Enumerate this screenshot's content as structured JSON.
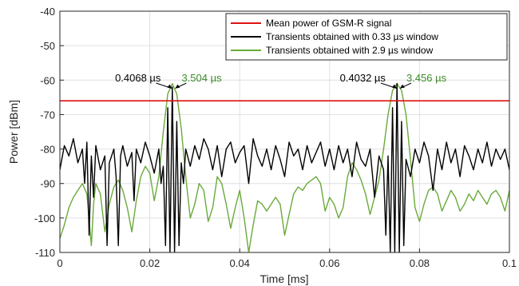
{
  "chart_data": {
    "type": "line",
    "title": "",
    "xlabel": "Time [ms]",
    "ylabel": "Power [dBm]",
    "xlim": [
      0,
      0.1
    ],
    "ylim": [
      -110,
      -40
    ],
    "xticks": [
      0,
      0.02,
      0.04,
      0.06,
      0.08,
      0.1
    ],
    "xtick_labels": [
      "0",
      "0.02",
      "0.04",
      "0.06",
      "0.08",
      "0.1"
    ],
    "yticks": [
      -110,
      -100,
      -90,
      -80,
      -70,
      -60,
      -50,
      -40
    ],
    "ytick_labels": [
      "-110",
      "-100",
      "-90",
      "-80",
      "-70",
      "-60",
      "-50",
      "-40"
    ],
    "grid": true,
    "legend_position": "top-right",
    "series": [
      {
        "name": "Mean power of GSM-R signal",
        "color": "#e01010",
        "x": [
          0,
          0.1
        ],
        "y": [
          -66,
          -66
        ]
      },
      {
        "name": "Transients obtained with 0.33 µs window",
        "color": "#000000",
        "x": [
          0,
          0.001,
          0.002,
          0.003,
          0.004,
          0.005,
          0.0055,
          0.006,
          0.0065,
          0.007,
          0.0075,
          0.008,
          0.009,
          0.01,
          0.0105,
          0.011,
          0.012,
          0.0125,
          0.013,
          0.0135,
          0.014,
          0.015,
          0.016,
          0.0165,
          0.017,
          0.018,
          0.019,
          0.02,
          0.021,
          0.022,
          0.0225,
          0.023,
          0.0235,
          0.024,
          0.0245,
          0.025,
          0.0255,
          0.026,
          0.0265,
          0.027,
          0.0275,
          0.028,
          0.029,
          0.03,
          0.031,
          0.032,
          0.033,
          0.034,
          0.035,
          0.036,
          0.037,
          0.038,
          0.039,
          0.04,
          0.041,
          0.042,
          0.043,
          0.044,
          0.045,
          0.046,
          0.047,
          0.048,
          0.049,
          0.05,
          0.051,
          0.052,
          0.053,
          0.054,
          0.055,
          0.056,
          0.057,
          0.058,
          0.059,
          0.06,
          0.061,
          0.062,
          0.063,
          0.064,
          0.065,
          0.066,
          0.067,
          0.068,
          0.069,
          0.07,
          0.071,
          0.072,
          0.0725,
          0.073,
          0.0735,
          0.074,
          0.0745,
          0.075,
          0.0755,
          0.076,
          0.0765,
          0.077,
          0.078,
          0.079,
          0.08,
          0.081,
          0.082,
          0.083,
          0.084,
          0.085,
          0.086,
          0.087,
          0.088,
          0.089,
          0.09,
          0.091,
          0.092,
          0.093,
          0.094,
          0.095,
          0.096,
          0.097,
          0.098,
          0.099,
          0.1
        ],
        "y": [
          -86,
          -79,
          -82,
          -77,
          -84,
          -80,
          -90,
          -78,
          -105,
          -82,
          -94,
          -79,
          -86,
          -82,
          -108,
          -84,
          -80,
          -88,
          -108,
          -82,
          -79,
          -85,
          -81,
          -95,
          -80,
          -84,
          -78,
          -82,
          -87,
          -80,
          -90,
          -85,
          -108,
          -68,
          -110,
          -62,
          -110,
          -72,
          -108,
          -84,
          -90,
          -80,
          -85,
          -79,
          -83,
          -77,
          -80,
          -86,
          -79,
          -88,
          -80,
          -78,
          -84,
          -81,
          -79,
          -90,
          -77,
          -82,
          -85,
          -80,
          -86,
          -79,
          -83,
          -88,
          -78,
          -82,
          -80,
          -86,
          -79,
          -84,
          -81,
          -78,
          -85,
          -80,
          -86,
          -79,
          -84,
          -80,
          -88,
          -78,
          -83,
          -85,
          -80,
          -94,
          -82,
          -86,
          -105,
          -82,
          -110,
          -68,
          -110,
          -61,
          -110,
          -72,
          -108,
          -83,
          -88,
          -80,
          -84,
          -78,
          -82,
          -92,
          -80,
          -86,
          -78,
          -84,
          -80,
          -88,
          -79,
          -82,
          -86,
          -80,
          -84,
          -78,
          -85,
          -80,
          -83,
          -80,
          -86
        ]
      },
      {
        "name": "Transients obtained with 2.9 µs window",
        "color": "#6aaa3a",
        "x": [
          0,
          0.001,
          0.002,
          0.003,
          0.004,
          0.005,
          0.006,
          0.007,
          0.0075,
          0.008,
          0.009,
          0.01,
          0.011,
          0.012,
          0.013,
          0.014,
          0.015,
          0.016,
          0.017,
          0.018,
          0.019,
          0.02,
          0.021,
          0.022,
          0.023,
          0.024,
          0.025,
          0.026,
          0.027,
          0.028,
          0.029,
          0.03,
          0.031,
          0.032,
          0.033,
          0.034,
          0.035,
          0.036,
          0.037,
          0.038,
          0.039,
          0.04,
          0.041,
          0.042,
          0.043,
          0.044,
          0.045,
          0.046,
          0.047,
          0.048,
          0.049,
          0.05,
          0.051,
          0.052,
          0.053,
          0.054,
          0.055,
          0.056,
          0.057,
          0.058,
          0.059,
          0.06,
          0.061,
          0.062,
          0.063,
          0.064,
          0.065,
          0.066,
          0.067,
          0.068,
          0.069,
          0.07,
          0.071,
          0.072,
          0.073,
          0.074,
          0.075,
          0.076,
          0.077,
          0.078,
          0.079,
          0.08,
          0.081,
          0.082,
          0.083,
          0.084,
          0.085,
          0.086,
          0.087,
          0.088,
          0.089,
          0.09,
          0.091,
          0.092,
          0.093,
          0.094,
          0.095,
          0.096,
          0.097,
          0.098,
          0.099,
          0.1
        ],
        "y": [
          -106,
          -102,
          -97,
          -94,
          -92,
          -90,
          -93,
          -108,
          -96,
          -90,
          -93,
          -104,
          -96,
          -91,
          -89,
          -92,
          -97,
          -104,
          -95,
          -88,
          -85,
          -87,
          -95,
          -88,
          -75,
          -64,
          -61,
          -64,
          -74,
          -88,
          -100,
          -96,
          -90,
          -92,
          -101,
          -97,
          -88,
          -90,
          -96,
          -103,
          -97,
          -92,
          -100,
          -110,
          -102,
          -95,
          -96,
          -98,
          -96,
          -94,
          -96,
          -105,
          -99,
          -93,
          -91,
          -92,
          -90,
          -89,
          -88,
          -90,
          -98,
          -94,
          -96,
          -100,
          -97,
          -88,
          -84,
          -86,
          -89,
          -93,
          -99,
          -94,
          -89,
          -80,
          -70,
          -63,
          -61,
          -63,
          -70,
          -83,
          -97,
          -101,
          -96,
          -92,
          -91,
          -93,
          -98,
          -95,
          -92,
          -94,
          -98,
          -96,
          -93,
          -95,
          -92,
          -94,
          -96,
          -93,
          -92,
          -94,
          -98,
          -92
        ]
      }
    ],
    "annotations": [
      {
        "text": "0.4068 µs",
        "x": 0.0253,
        "y": -61,
        "color": "#000000"
      },
      {
        "text": "3.504 µs",
        "x": 0.0253,
        "y": -61,
        "color": "#3a8c2a"
      },
      {
        "text": "0.4032 µs",
        "x": 0.0753,
        "y": -61,
        "color": "#000000"
      },
      {
        "text": "3.456 µs",
        "x": 0.0753,
        "y": -61,
        "color": "#3a8c2a"
      }
    ]
  }
}
